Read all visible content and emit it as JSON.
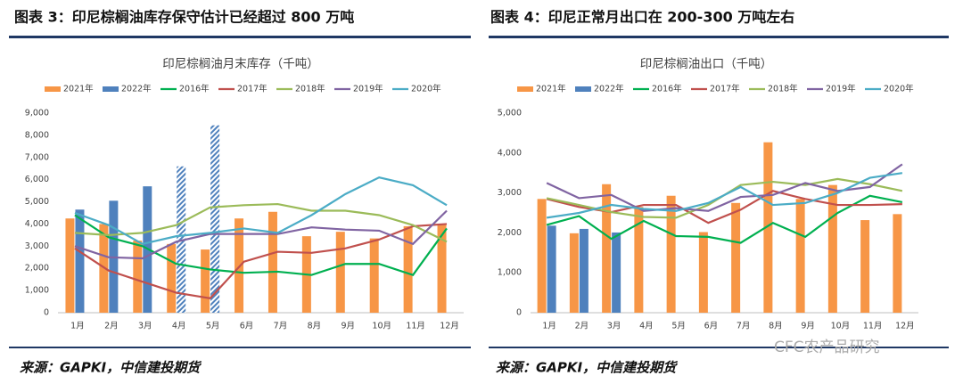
{
  "figures": [
    {
      "title": "图表 3：印尼棕榈油库存保守估计已经超过 800 万吨",
      "source": "来源：GAPKI，中信建投期货"
    },
    {
      "title": "图表 4：印尼正常月出口在 200-300 万吨左右",
      "source": "来源：GAPKI，中信建投期货"
    }
  ],
  "watermark": "CFC农产品研究",
  "chart_data": [
    {
      "type": "combo",
      "title": "印尼棕榈油月末库存（千吨）",
      "categories": [
        "1月",
        "2月",
        "3月",
        "4月",
        "5月",
        "6月",
        "7月",
        "8月",
        "9月",
        "10月",
        "11月",
        "12月"
      ],
      "ylim": [
        0,
        9000
      ],
      "yticks": [
        0,
        {
          "value": 1000,
          "label": "1,000"
        },
        {
          "value": 2000,
          "label": "2,000"
        },
        {
          "value": 3000,
          "label": "3,000"
        },
        {
          "value": 4000,
          "label": "4,000"
        },
        {
          "value": 5000,
          "label": "5,000"
        },
        {
          "value": 6000,
          "label": "6,000"
        },
        {
          "value": 7000,
          "label": "7,000"
        },
        {
          "value": 8000,
          "label": "8,000"
        },
        {
          "value": 9000,
          "label": "9,000"
        }
      ],
      "grid": false,
      "series": [
        {
          "name": "2021年",
          "type": "bar",
          "color": "#f79646",
          "values": [
            4250,
            4000,
            3250,
            3100,
            2850,
            4250,
            4550,
            3450,
            3650,
            3350,
            3900,
            4000
          ]
        },
        {
          "name": "2022年",
          "type": "bar",
          "color": "#4f81bd",
          "hatched": [
            3,
            4
          ],
          "values": [
            4650,
            5050,
            5700,
            6600,
            8450,
            null,
            null,
            null,
            null,
            null,
            null,
            null
          ]
        },
        {
          "name": "2016年",
          "type": "line",
          "color": "#00b050",
          "values": [
            4400,
            3400,
            3000,
            2200,
            1950,
            1800,
            1850,
            1700,
            2200,
            2200,
            1700,
            3800
          ]
        },
        {
          "name": "2017年",
          "type": "line",
          "color": "#c0504d",
          "values": [
            2900,
            1900,
            1400,
            900,
            650,
            2300,
            2750,
            2700,
            2900,
            3300,
            3900,
            4000
          ]
        },
        {
          "name": "2018年",
          "type": "line",
          "color": "#9bbb59",
          "values": [
            3600,
            3500,
            3600,
            3950,
            4750,
            4850,
            4900,
            4600,
            4600,
            4400,
            3950,
            3200
          ]
        },
        {
          "name": "2019年",
          "type": "line",
          "color": "#8064a2",
          "values": [
            3000,
            2500,
            2450,
            3200,
            3550,
            3550,
            3550,
            3850,
            3750,
            3700,
            3100,
            4600
          ]
        },
        {
          "name": "2020年",
          "type": "line",
          "color": "#4bacc6",
          "values": [
            4500,
            3950,
            3100,
            3450,
            3600,
            3800,
            3600,
            4400,
            5350,
            6100,
            5750,
            4850
          ]
        }
      ]
    },
    {
      "type": "combo",
      "title": "印尼棕榈油出口（千吨）",
      "categories": [
        "1月",
        "2月",
        "3月",
        "4月",
        "5月",
        "6月",
        "7月",
        "8月",
        "9月",
        "10月",
        "11月",
        "12月"
      ],
      "ylim": [
        0,
        5000
      ],
      "yticks": [
        0,
        {
          "value": 1000,
          "label": "1,000"
        },
        {
          "value": 2000,
          "label": "2,000"
        },
        {
          "value": 3000,
          "label": "3,000"
        },
        {
          "value": 4000,
          "label": "4,000"
        },
        {
          "value": 5000,
          "label": "5,000"
        }
      ],
      "grid": false,
      "series": [
        {
          "name": "2021年",
          "type": "bar",
          "color": "#f79646",
          "values": [
            2850,
            1990,
            3220,
            2650,
            2930,
            2020,
            2750,
            4270,
            2850,
            3200,
            2320,
            2470
          ]
        },
        {
          "name": "2022年",
          "type": "bar",
          "color": "#4f81bd",
          "values": [
            2180,
            2100,
            2010,
            null,
            null,
            null,
            null,
            null,
            null,
            null,
            null,
            null
          ]
        },
        {
          "name": "2016年",
          "type": "line",
          "color": "#00b050",
          "values": [
            2200,
            2420,
            1850,
            2300,
            1920,
            1900,
            1750,
            2250,
            1900,
            2500,
            2930,
            2770
          ]
        },
        {
          "name": "2017年",
          "type": "line",
          "color": "#c0504d",
          "values": [
            2850,
            2650,
            2520,
            2700,
            2700,
            2250,
            2580,
            3050,
            2850,
            2700,
            2700,
            2720
          ]
        },
        {
          "name": "2018年",
          "type": "line",
          "color": "#9bbb59",
          "values": [
            2870,
            2700,
            2520,
            2400,
            2380,
            2700,
            3200,
            3280,
            3200,
            3350,
            3220,
            3050
          ]
        },
        {
          "name": "2019年",
          "type": "line",
          "color": "#8064a2",
          "values": [
            3250,
            2870,
            2950,
            2550,
            2620,
            2550,
            2900,
            2950,
            3250,
            3050,
            3150,
            3720
          ]
        },
        {
          "name": "2020年",
          "type": "line",
          "color": "#4bacc6",
          "values": [
            2380,
            2500,
            2700,
            2600,
            2550,
            2750,
            3150,
            2700,
            2750,
            3000,
            3380,
            3500
          ]
        }
      ]
    }
  ]
}
